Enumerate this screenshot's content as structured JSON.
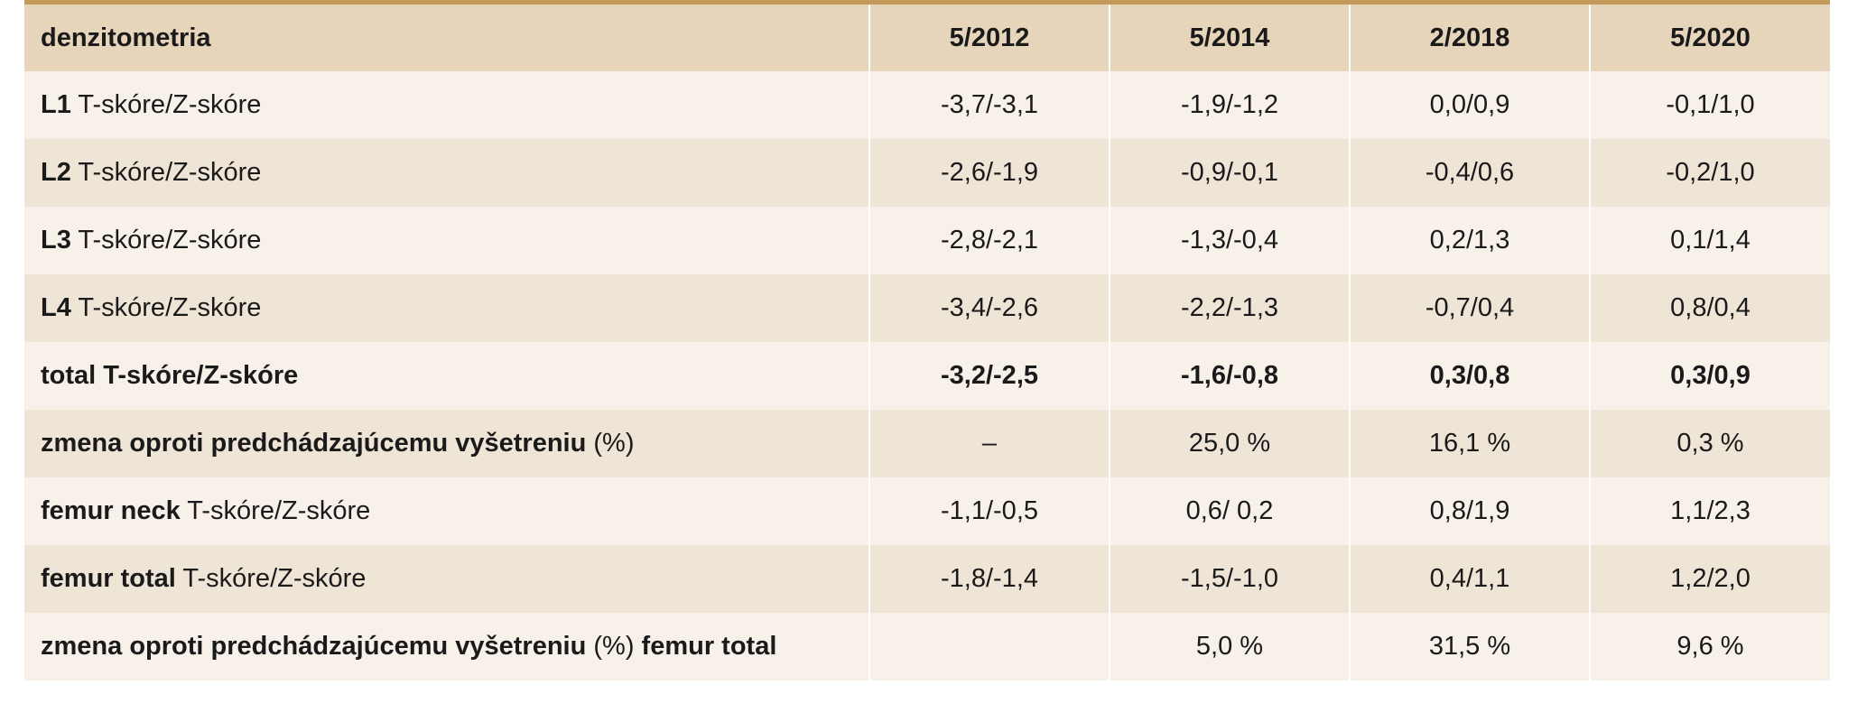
{
  "header": {
    "label": "denzitometria",
    "dates": [
      "5/2012",
      "5/2014",
      "2/2018",
      "5/2020"
    ]
  },
  "rows": [
    {
      "bold": "L1",
      "normal": " T-skóre/Z-skóre",
      "bold2": "",
      "values": [
        "-3,7/-3,1",
        "-1,9/-1,2",
        "0,0/0,9",
        "-0,1/1,0"
      ]
    },
    {
      "bold": "L2",
      "normal": " T-skóre/Z-skóre",
      "bold2": "",
      "values": [
        "-2,6/-1,9",
        "-0,9/-0,1",
        "-0,4/0,6",
        "-0,2/1,0"
      ]
    },
    {
      "bold": "L3",
      "normal": " T-skóre/Z-skóre",
      "bold2": "",
      "values": [
        "-2,8/-2,1",
        "-1,3/-0,4",
        "0,2/1,3",
        "0,1/1,4"
      ]
    },
    {
      "bold": "L4",
      "normal": " T-skóre/Z-skóre",
      "bold2": "",
      "values": [
        "-3,4/-2,6",
        "-2,2/-1,3",
        "-0,7/0,4",
        "0,8/0,4"
      ]
    },
    {
      "bold": "total T-skóre/Z-skóre",
      "normal": "",
      "bold2": "",
      "values": [
        "-3,2/-2,5",
        "-1,6/-0,8",
        "0,3/0,8",
        "0,3/0,9"
      ]
    },
    {
      "bold": "zmena oproti predchádzajúcemu vyšetreniu",
      "normal": " (%)",
      "bold2": "",
      "values": [
        "–",
        "25,0 %",
        "16,1 %",
        "0,3 %"
      ]
    },
    {
      "bold": "femur neck",
      "normal": " T-skóre/Z-skóre",
      "bold2": "",
      "values": [
        "-1,1/-0,5",
        "0,6/ 0,2",
        "0,8/1,9",
        "1,1/2,3"
      ]
    },
    {
      "bold": "femur total",
      "normal": " T-skóre/Z-skóre",
      "bold2": "",
      "values": [
        "-1,8/-1,4",
        "-1,5/-1,0",
        "0,4/1,1",
        "1,2/2,0"
      ]
    },
    {
      "bold": "zmena oproti predchádzajúcemu vyšetreniu",
      "normal": " (%) ",
      "bold2": "femur total",
      "values": [
        "",
        "5,0 %",
        "31,5 %",
        "9,6 %"
      ]
    }
  ]
}
